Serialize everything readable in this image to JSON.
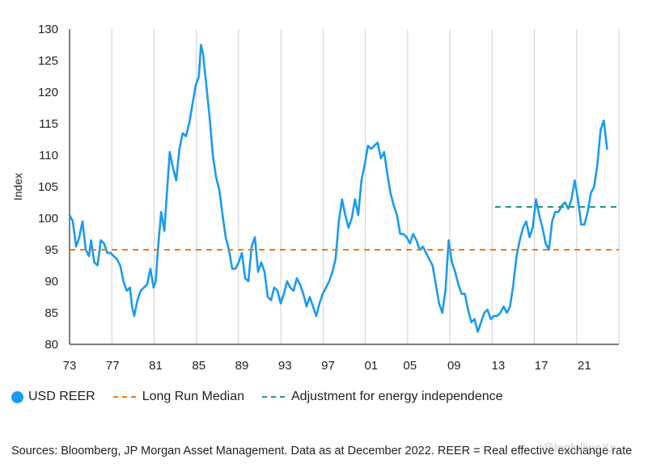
{
  "chart_data": {
    "type": "line",
    "ylabel": "Index",
    "xlabel": "",
    "ylim": [
      80,
      130
    ],
    "yticks": [
      80,
      85,
      90,
      95,
      100,
      105,
      110,
      115,
      120,
      125,
      130
    ],
    "xlim": [
      1973,
      2024
    ],
    "xticks": [
      {
        "label": "73",
        "value": 1973
      },
      {
        "label": "77",
        "value": 1977
      },
      {
        "label": "81",
        "value": 1981
      },
      {
        "label": "85",
        "value": 1985
      },
      {
        "label": "89",
        "value": 1989
      },
      {
        "label": "93",
        "value": 1993
      },
      {
        "label": "97",
        "value": 1997
      },
      {
        "label": "01",
        "value": 2001
      },
      {
        "label": "05",
        "value": 2004.6
      },
      {
        "label": "09",
        "value": 2008.7
      },
      {
        "label": "13",
        "value": 2012.8
      },
      {
        "label": "17",
        "value": 2016.8
      },
      {
        "label": "21",
        "value": 2020.8
      }
    ],
    "grid": "vertical",
    "series": [
      {
        "name": "USD REER",
        "color": "#1a9bf0",
        "style": "solid",
        "x": [
          1973.0,
          1973.3,
          1973.6,
          1973.9,
          1974.2,
          1974.5,
          1974.8,
          1975.0,
          1975.3,
          1975.6,
          1975.9,
          1976.2,
          1976.5,
          1976.8,
          1977.1,
          1977.4,
          1977.7,
          1978.0,
          1978.3,
          1978.6,
          1978.8,
          1979.0,
          1979.3,
          1979.6,
          1979.9,
          1980.2,
          1980.5,
          1980.8,
          1981.0,
          1981.2,
          1981.5,
          1981.8,
          1982.0,
          1982.3,
          1982.6,
          1982.9,
          1983.2,
          1983.5,
          1983.8,
          1984.1,
          1984.4,
          1984.7,
          1985.0,
          1985.2,
          1985.4,
          1985.7,
          1986.0,
          1986.3,
          1986.6,
          1986.9,
          1987.2,
          1987.5,
          1987.8,
          1988.1,
          1988.4,
          1988.7,
          1989.0,
          1989.3,
          1989.6,
          1989.9,
          1990.2,
          1990.5,
          1990.8,
          1991.1,
          1991.4,
          1991.7,
          1992.0,
          1992.3,
          1992.6,
          1992.9,
          1993.2,
          1993.5,
          1993.8,
          1994.1,
          1994.4,
          1994.7,
          1995.0,
          1995.3,
          1995.6,
          1995.9,
          1996.2,
          1996.5,
          1996.8,
          1997.1,
          1997.4,
          1997.7,
          1998.0,
          1998.3,
          1998.6,
          1998.9,
          1999.2,
          1999.5,
          1999.8,
          2000.1,
          2000.4,
          2000.7,
          2001.0,
          2001.3,
          2001.6,
          2001.9,
          2002.2,
          2002.5,
          2002.8,
          2003.1,
          2003.4,
          2003.7,
          2004.0,
          2004.3,
          2004.6,
          2004.9,
          2005.2,
          2005.5,
          2005.8,
          2006.1,
          2006.4,
          2006.7,
          2007.0,
          2007.3,
          2007.6,
          2007.9,
          2008.2,
          2008.5,
          2008.8,
          2009.1,
          2009.4,
          2009.7,
          2010.0,
          2010.3,
          2010.6,
          2010.9,
          2011.2,
          2011.5,
          2011.8,
          2012.1,
          2012.4,
          2012.7,
          2013.0,
          2013.3,
          2013.6,
          2013.9,
          2014.2,
          2014.5,
          2014.8,
          2015.1,
          2015.4,
          2015.7,
          2016.0,
          2016.3,
          2016.6,
          2016.9,
          2017.2,
          2017.5,
          2017.8,
          2018.1,
          2018.4,
          2018.7,
          2019.0,
          2019.3,
          2019.6,
          2019.9,
          2020.2,
          2020.5,
          2020.8,
          2021.1,
          2021.4,
          2021.7,
          2022.0,
          2022.3,
          2022.6,
          2022.9
        ],
        "values": [
          100.5,
          99.5,
          95.5,
          97.0,
          99.5,
          95.0,
          94.0,
          96.5,
          93.0,
          92.5,
          96.5,
          96.0,
          94.5,
          94.5,
          94.0,
          93.5,
          92.5,
          90.0,
          88.5,
          89.0,
          86.0,
          84.5,
          87.0,
          88.5,
          89.0,
          89.5,
          92.0,
          89.0,
          90.0,
          95.0,
          101.0,
          98.0,
          103.0,
          110.5,
          108.0,
          106.0,
          111.0,
          113.5,
          113.0,
          115.0,
          118.0,
          121.0,
          122.5,
          127.5,
          126.0,
          121.0,
          116.0,
          110.0,
          106.5,
          104.5,
          100.5,
          97.0,
          95.0,
          92.0,
          92.0,
          93.0,
          94.5,
          90.5,
          90.0,
          95.5,
          97.0,
          91.5,
          93.0,
          91.5,
          87.5,
          87.0,
          89.0,
          88.5,
          86.5,
          88.0,
          90.0,
          89.0,
          88.5,
          90.5,
          89.5,
          88.0,
          86.0,
          87.5,
          86.0,
          84.5,
          86.5,
          88.0,
          89.0,
          90.0,
          91.5,
          93.5,
          99.5,
          103.0,
          100.5,
          98.5,
          100.0,
          103.0,
          100.5,
          106.0,
          108.5,
          111.5,
          111.0,
          111.5,
          112.0,
          109.5,
          110.5,
          107.0,
          104.0,
          102.0,
          100.5,
          97.5,
          97.5,
          97.0,
          96.0,
          97.5,
          96.5,
          95.0,
          95.5,
          94.5,
          93.5,
          92.5,
          89.5,
          86.5,
          85.0,
          88.5,
          96.5,
          93.0,
          91.5,
          89.5,
          88.0,
          88.0,
          85.5,
          83.5,
          84.0,
          82.0,
          83.5,
          85.0,
          85.5,
          84.0,
          84.5,
          84.5,
          85.0,
          86.0,
          85.0,
          86.0,
          89.5,
          94.0,
          96.5,
          98.5,
          99.5,
          97.0,
          98.5,
          103.0,
          100.5,
          98.5,
          96.0,
          95.0,
          99.5,
          101.0,
          101.0,
          102.0,
          102.5,
          101.5,
          103.0,
          106.0,
          103.0,
          99.0,
          99.0,
          101.0,
          104.0,
          105.0,
          108.5,
          114.0,
          115.5,
          111.0
        ]
      },
      {
        "name": "Long Run Median",
        "color": "#f07a1a",
        "style": "dashed",
        "x": [
          1973.0,
          2024.0
        ],
        "values": [
          95.0,
          95.0
        ]
      },
      {
        "name": "Adjustment for energy independence",
        "color": "#1e9a73",
        "style": "dashed",
        "x": [
          2012.5,
          2024.0
        ],
        "values": [
          101.8,
          101.8
        ]
      }
    ]
  },
  "legend": {
    "items": [
      {
        "label": "USD REER",
        "color": "#1a9bf0",
        "kind": "dot"
      },
      {
        "label": "Long Run Median",
        "color": "#f07a1a",
        "kind": "dash"
      },
      {
        "label": "Adjustment for energy independence",
        "color": "#1e9a73",
        "kind": "dash"
      }
    ]
  },
  "footer": {
    "source": "Sources: Bloomberg, JP Morgan Asset Management. Data as at December 2022. REER = Real effective exchange rate",
    "watermark": "@lnglullipeXx"
  }
}
